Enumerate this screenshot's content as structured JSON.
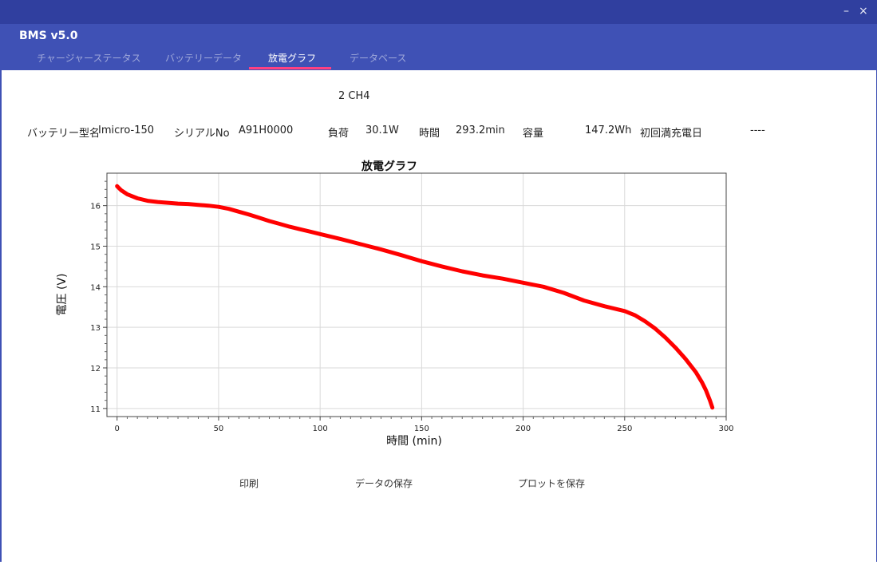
{
  "window": {
    "app_title": "BMS v5.0",
    "minimize_glyph": "–",
    "close_glyph": "×"
  },
  "tabs": [
    {
      "label": "チャージャーステータス",
      "active": false
    },
    {
      "label": "バッテリーデータ",
      "active": false
    },
    {
      "label": "放電グラフ",
      "active": true
    },
    {
      "label": "データベース",
      "active": false
    }
  ],
  "colors": {
    "titlebar": "#303f9f",
    "appbar": "#3f51b5",
    "tab_indicator": "#ff4081",
    "curve": "#ff0000"
  },
  "channel_label": "2  CH4",
  "info": {
    "battery_model_label": "バッテリー型名",
    "battery_model_value": "Imicro-150",
    "serial_label": "シリアルNo",
    "serial_value": "A91H0000",
    "load_label": "負荷",
    "load_value": "30.1W",
    "time_label": "時間",
    "time_value": "293.2min",
    "capacity_label": "容量",
    "capacity_value": "147.2Wh",
    "first_full_charge_label": "初回満充電日",
    "first_full_charge_value": "----"
  },
  "chart_data": {
    "type": "line",
    "title": "放電グラフ",
    "xlabel": "時間 (min)",
    "ylabel": "電圧 (V)",
    "xlim": [
      -5,
      300
    ],
    "ylim": [
      10.8,
      16.8
    ],
    "xticks": [
      0,
      50,
      100,
      150,
      200,
      250,
      300
    ],
    "yticks": [
      11,
      12,
      13,
      14,
      15,
      16
    ],
    "grid": true,
    "series": [
      {
        "x": [
          0,
          2,
          5,
          10,
          15,
          20,
          25,
          30,
          35,
          40,
          45,
          50,
          55,
          60,
          65,
          70,
          75,
          80,
          85,
          90,
          95,
          100,
          110,
          120,
          130,
          140,
          150,
          160,
          170,
          180,
          190,
          200,
          210,
          220,
          230,
          240,
          250,
          255,
          260,
          265,
          270,
          275,
          280,
          285,
          288,
          290,
          292,
          293.2
        ],
        "y": [
          16.48,
          16.38,
          16.28,
          16.18,
          16.12,
          16.09,
          16.07,
          16.05,
          16.04,
          16.02,
          16.0,
          15.97,
          15.92,
          15.85,
          15.78,
          15.7,
          15.62,
          15.55,
          15.48,
          15.42,
          15.36,
          15.3,
          15.18,
          15.05,
          14.92,
          14.78,
          14.63,
          14.5,
          14.38,
          14.28,
          14.2,
          14.1,
          14.0,
          13.85,
          13.66,
          13.52,
          13.4,
          13.3,
          13.15,
          12.97,
          12.75,
          12.5,
          12.22,
          11.9,
          11.65,
          11.45,
          11.2,
          11.02
        ]
      }
    ]
  },
  "buttons": {
    "print": "印刷",
    "save_data": "データの保存",
    "save_plot": "プロットを保存"
  }
}
